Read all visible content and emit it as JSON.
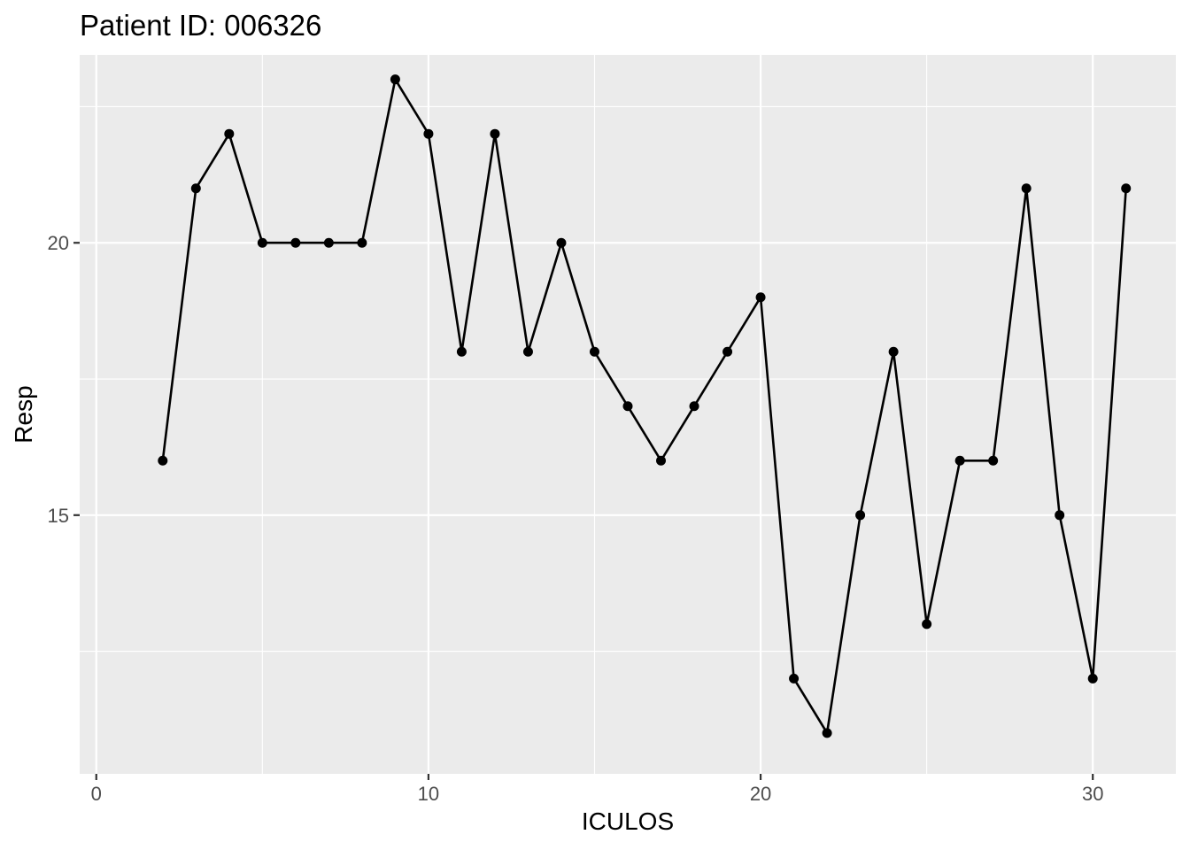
{
  "chart_data": {
    "type": "line",
    "title": "Patient ID: 006326",
    "xlabel": "ICULOS",
    "ylabel": "Resp",
    "xlim": [
      -0.5,
      32.5
    ],
    "ylim": [
      10.25,
      23.45
    ],
    "x_ticks": [
      0,
      10,
      20,
      30
    ],
    "x_tick_labels": [
      "0",
      "10",
      "20",
      "30"
    ],
    "x_minor_ticks": [
      5,
      15,
      25
    ],
    "y_ticks": [
      15,
      20
    ],
    "y_tick_labels": [
      "15",
      "20"
    ],
    "y_minor_ticks": [
      12.5,
      17.5,
      22.5
    ],
    "grid": true,
    "series": [
      {
        "x": [
          2,
          3,
          4,
          5,
          6,
          7,
          8,
          9,
          10,
          11,
          12,
          13,
          14,
          15,
          16,
          17,
          18,
          19,
          20,
          21,
          22,
          23,
          24,
          25,
          26,
          27,
          28,
          29,
          30,
          31
        ],
        "values": [
          16,
          21,
          22,
          20,
          20,
          20,
          20,
          23,
          22,
          18,
          22,
          18,
          20,
          18,
          17,
          16,
          17,
          18,
          19,
          12,
          11,
          15,
          18,
          13,
          16,
          16,
          21,
          15,
          12,
          21
        ]
      }
    ]
  }
}
